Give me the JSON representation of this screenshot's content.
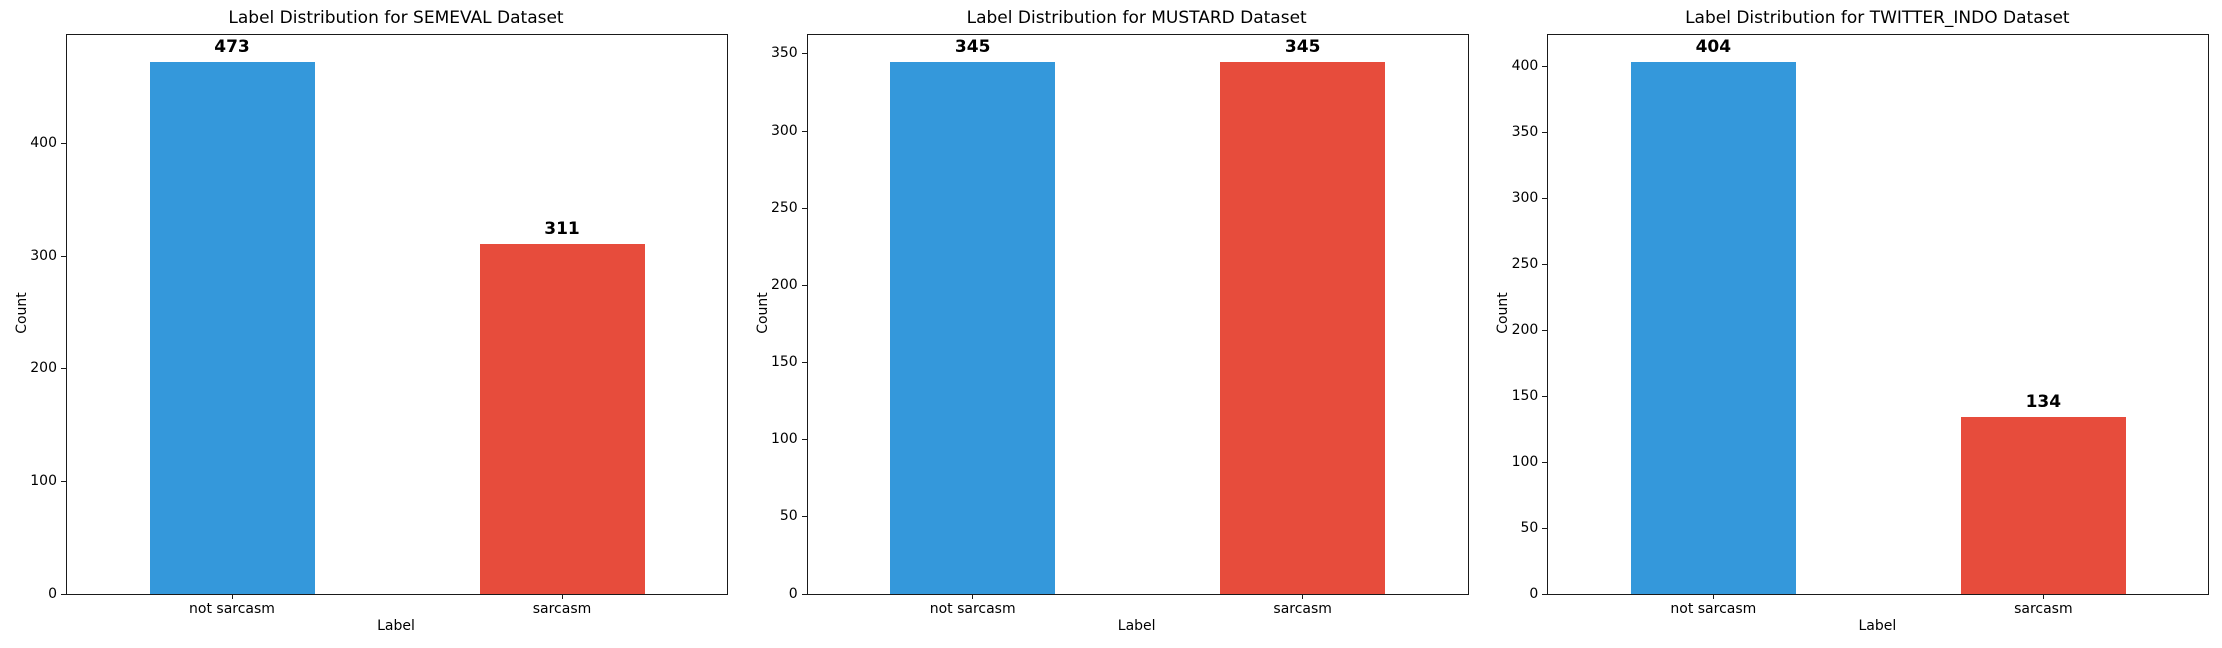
{
  "figure": {
    "background": "#ffffff",
    "palette": {
      "not_sarcasm": "#3498db",
      "sarcasm": "#e74c3c"
    }
  },
  "chart_data": [
    {
      "type": "bar",
      "title": "Label Distribution for SEMEVAL Dataset",
      "xlabel": "Label",
      "ylabel": "Count",
      "categories": [
        "not sarcasm",
        "sarcasm"
      ],
      "values": [
        473,
        311
      ],
      "bar_colors": [
        "#3498db",
        "#e74c3c"
      ],
      "yticks": [
        0,
        100,
        200,
        300,
        400
      ],
      "ylim": [
        0,
        496.65
      ],
      "grid": false,
      "legend": false
    },
    {
      "type": "bar",
      "title": "Label Distribution for MUSTARD Dataset",
      "xlabel": "Label",
      "ylabel": "Count",
      "categories": [
        "not sarcasm",
        "sarcasm"
      ],
      "values": [
        345,
        345
      ],
      "bar_colors": [
        "#3498db",
        "#e74c3c"
      ],
      "yticks": [
        0,
        50,
        100,
        150,
        200,
        250,
        300,
        350
      ],
      "ylim": [
        0,
        362.25
      ],
      "grid": false,
      "legend": false
    },
    {
      "type": "bar",
      "title": "Label Distribution for TWITTER_INDO Dataset",
      "xlabel": "Label",
      "ylabel": "Count",
      "categories": [
        "not sarcasm",
        "sarcasm"
      ],
      "values": [
        404,
        134
      ],
      "bar_colors": [
        "#3498db",
        "#e74c3c"
      ],
      "yticks": [
        0,
        50,
        100,
        150,
        200,
        250,
        300,
        350,
        400
      ],
      "ylim": [
        0,
        424.2
      ],
      "grid": false,
      "legend": false
    }
  ]
}
